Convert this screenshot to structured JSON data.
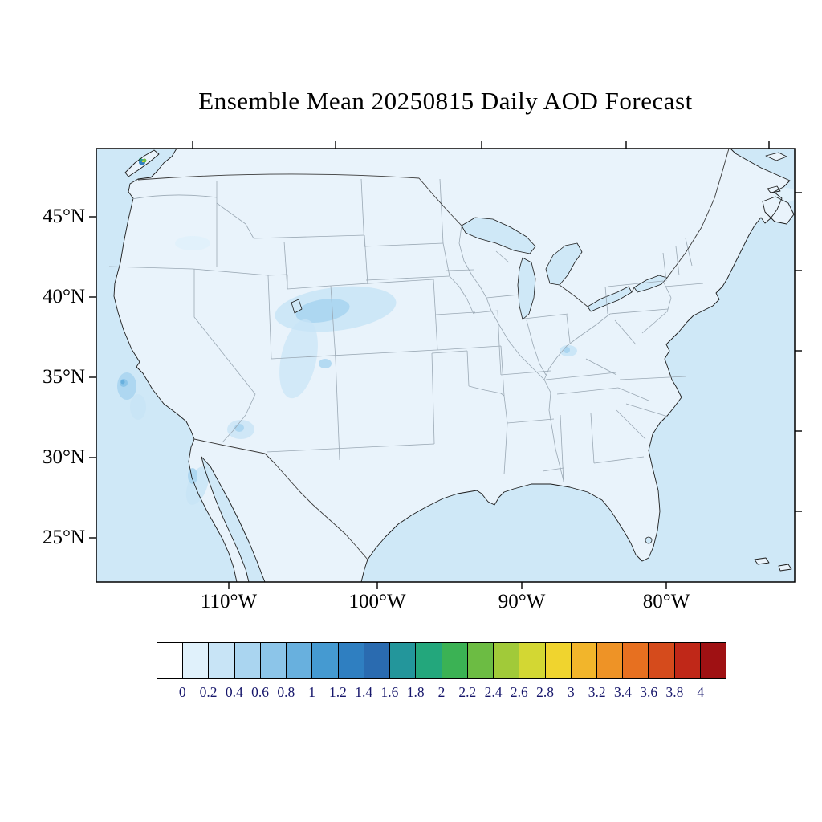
{
  "title": "Ensemble Mean 20250815 Daily AOD Forecast",
  "axes": {
    "lat_labels": [
      "45°N",
      "40°N",
      "35°N",
      "30°N",
      "25°N"
    ],
    "lon_labels": [
      "110°W",
      "100°W",
      "90°W",
      "80°W"
    ]
  },
  "colorbar": {
    "tick_labels": [
      "0",
      "0.2",
      "0.4",
      "0.6",
      "0.8",
      "1",
      "1.2",
      "1.4",
      "1.6",
      "1.8",
      "2",
      "2.2",
      "2.4",
      "2.6",
      "2.8",
      "3",
      "3.2",
      "3.4",
      "3.6",
      "3.8",
      "4"
    ],
    "cell_colors": [
      "#ffffff",
      "#e0f1fb",
      "#c8e4f6",
      "#aad5f0",
      "#8cc5e9",
      "#68b0de",
      "#459ad1",
      "#2f7fc1",
      "#2a6bb0",
      "#23969b",
      "#23a77c",
      "#3bb254",
      "#6cbc43",
      "#a1ca39",
      "#d3d733",
      "#f0d42e",
      "#f2b52b",
      "#ee9326",
      "#e77020",
      "#d54b1c",
      "#c02818",
      "#9f1113"
    ]
  },
  "map_colors": {
    "ocean": "#cfe8f7",
    "land": "#e9f3fb",
    "coast": "#1c1c1c",
    "stateline": "#9aa8b4",
    "frame": "#000000"
  },
  "chart_data": {
    "type": "heatmap",
    "title": "Ensemble Mean 20250815 Daily AOD Forecast",
    "variable": "Daily mean aerosol optical depth (AOD), ensemble mean forecast",
    "date_shown_in_title": "20250815",
    "region": "Contiguous United States with adjacent Canada, Mexico and coastal oceans",
    "projection_note": "Conic map, parallels and meridians gently curved; ticks on all four sides",
    "lat_tick_values_deg_n": [
      45,
      40,
      35,
      30,
      25
    ],
    "lon_tick_values_deg_w": [
      110,
      100,
      90,
      80
    ],
    "colorbar_levels": [
      0,
      0.2,
      0.4,
      0.6,
      0.8,
      1,
      1.2,
      1.4,
      1.6,
      1.8,
      2,
      2.2,
      2.4,
      2.6,
      2.8,
      3,
      3.2,
      3.4,
      3.6,
      3.8,
      4
    ],
    "colorbar_orientation": "horizontal, below map",
    "field_summary": [
      {
        "area": "Most of the domain (land and ocean)",
        "aod": "0 to 0.2 (palest blue)"
      },
      {
        "area": "Utah and western Colorado plume",
        "aod": "0.2 to 0.6"
      },
      {
        "area": "Central California coast near San Francisco",
        "aod": "0.4 to 1.0 small spot"
      },
      {
        "area": "Southern British Columbia / Vancouver Island (top-left)",
        "aod": "local hotspot with green-yellow core"
      },
      {
        "area": "Northern Baja California coast",
        "aod": "0.2 to 0.4"
      },
      {
        "area": "Small spot near Kentucky",
        "aod": "0.2 to 0.4"
      },
      {
        "area": "Northeast corner (Gulf of St. Lawrence)",
        "aod": "0.2 faint patch"
      }
    ]
  }
}
